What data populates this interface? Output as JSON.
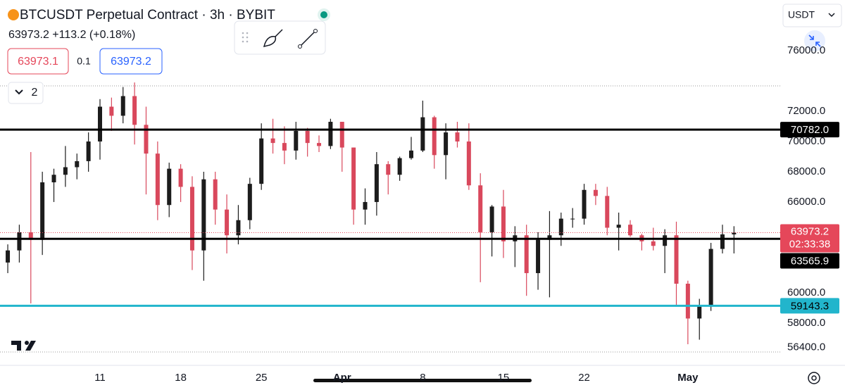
{
  "chart_data": {
    "type": "candlestick",
    "title": "BTCUSDT Perpetual Contract · 3h · BYBIT",
    "quote": "63973.2 +113.2 (+0.18%)",
    "bid": "63973.1",
    "spread": "0.1",
    "ask": "63973.2",
    "indicators": "2",
    "currency": "USDT",
    "categories": [
      null,
      null,
      null,
      null,
      null,
      null,
      null,
      null,
      "11",
      null,
      null,
      null,
      null,
      null,
      null,
      "18",
      null,
      null,
      null,
      null,
      null,
      null,
      "25",
      null,
      null,
      null,
      null,
      null,
      null,
      "Apr",
      null,
      null,
      null,
      null,
      null,
      null,
      "8",
      null,
      null,
      null,
      null,
      null,
      null,
      "15",
      null,
      null,
      null,
      null,
      null,
      null,
      "22",
      null,
      null,
      null,
      null,
      null,
      null,
      null,
      null,
      "May",
      null,
      null,
      null,
      null
    ],
    "open": [
      62000,
      62800,
      64000,
      63500,
      67300,
      67800,
      68300,
      68700,
      70000,
      72300,
      71700,
      73000,
      71100,
      69200,
      65800,
      68200,
      67000,
      62800,
      67500,
      65500,
      63800,
      64800,
      67200,
      70200,
      69900,
      69400,
      70700,
      69900,
      69700,
      71300,
      69600,
      65500,
      66000,
      68500,
      67800,
      68900,
      69400,
      71600,
      69100,
      70600,
      70000,
      67100,
      64000,
      65700,
      63400,
      63800,
      61300,
      63500,
      63800,
      64900,
      64900,
      66800,
      66400,
      64300,
      64500,
      63800,
      63400,
      63100,
      63800,
      60600,
      58300,
      59100,
      62900,
      63860
    ],
    "high": [
      63200,
      64500,
      69300,
      68000,
      68200,
      69700,
      69200,
      70600,
      72800,
      72900,
      73600,
      73900,
      72300,
      70000,
      68600,
      68500,
      67700,
      68000,
      68000,
      66500,
      65800,
      67600,
      71200,
      71500,
      71000,
      71300,
      70900,
      70400,
      71500,
      71300,
      69600,
      66900,
      69300,
      68700,
      69000,
      70300,
      72700,
      71700,
      71200,
      71300,
      71200,
      67900,
      65800,
      66800,
      64400,
      64500,
      64000,
      65400,
      65300,
      65600,
      67200,
      67200,
      67000,
      65300,
      64800,
      63900,
      64300,
      64200,
      64700,
      60800,
      59600,
      63300,
      64500,
      64400
    ],
    "low": [
      61300,
      62000,
      59300,
      62500,
      66000,
      67000,
      67500,
      68000,
      68800,
      70700,
      71200,
      69800,
      66500,
      64800,
      65000,
      66000,
      61500,
      60800,
      64500,
      62600,
      63200,
      64200,
      66800,
      69200,
      68500,
      68800,
      69000,
      69300,
      69500,
      68000,
      64500,
      64500,
      65100,
      66500,
      67400,
      68800,
      69300,
      68200,
      67500,
      69600,
      66800,
      60700,
      62400,
      62300,
      61700,
      59800,
      60200,
      59700,
      63100,
      64300,
      64500,
      65800,
      63800,
      62800,
      63700,
      62800,
      62800,
      61300,
      59100,
      56600,
      56900,
      58800,
      62600,
      62600
    ],
    "close": [
      62800,
      64000,
      63500,
      67300,
      67800,
      68300,
      68700,
      70000,
      72300,
      71700,
      73000,
      71100,
      69200,
      65800,
      68200,
      67000,
      62800,
      67500,
      65500,
      63800,
      64800,
      67200,
      70200,
      69900,
      69400,
      70700,
      69900,
      69700,
      71300,
      69600,
      65500,
      66000,
      68500,
      67800,
      68900,
      69400,
      71600,
      69100,
      70600,
      70000,
      67100,
      64000,
      65700,
      63400,
      63800,
      61300,
      63500,
      63800,
      64900,
      64900,
      66800,
      66400,
      64300,
      64500,
      63800,
      63400,
      63100,
      63800,
      60600,
      58300,
      59100,
      62900,
      63860,
      63973.2
    ],
    "up_color": "#1c1c1c",
    "down_color": "#d9485c",
    "ylim": [
      55250,
      79350
    ],
    "yticks": [
      {
        "value": 76000,
        "label": "76000.0"
      },
      {
        "value": 72000,
        "label": "72000.0"
      },
      {
        "value": 70000,
        "label": "70000.0"
      },
      {
        "value": 68000,
        "label": "68000.0"
      },
      {
        "value": 66000,
        "label": "66000.0"
      },
      {
        "value": 60000,
        "label": "60000.0"
      },
      {
        "value": 58000,
        "label": "58000.0"
      },
      {
        "value": 56400,
        "label": "56400.0"
      }
    ],
    "levels": [
      {
        "value": 70782.0,
        "label": "70782.0",
        "color": "#000000"
      },
      {
        "value": 63565.9,
        "label": "63565.9",
        "color": "#000000"
      },
      {
        "value": 59143.3,
        "label": "59143.3",
        "color": "#22b5cc"
      }
    ],
    "last_price": {
      "value": 63973.2,
      "label": "63973.2",
      "countdown": "02:33:38",
      "color": "#e5475a"
    }
  }
}
